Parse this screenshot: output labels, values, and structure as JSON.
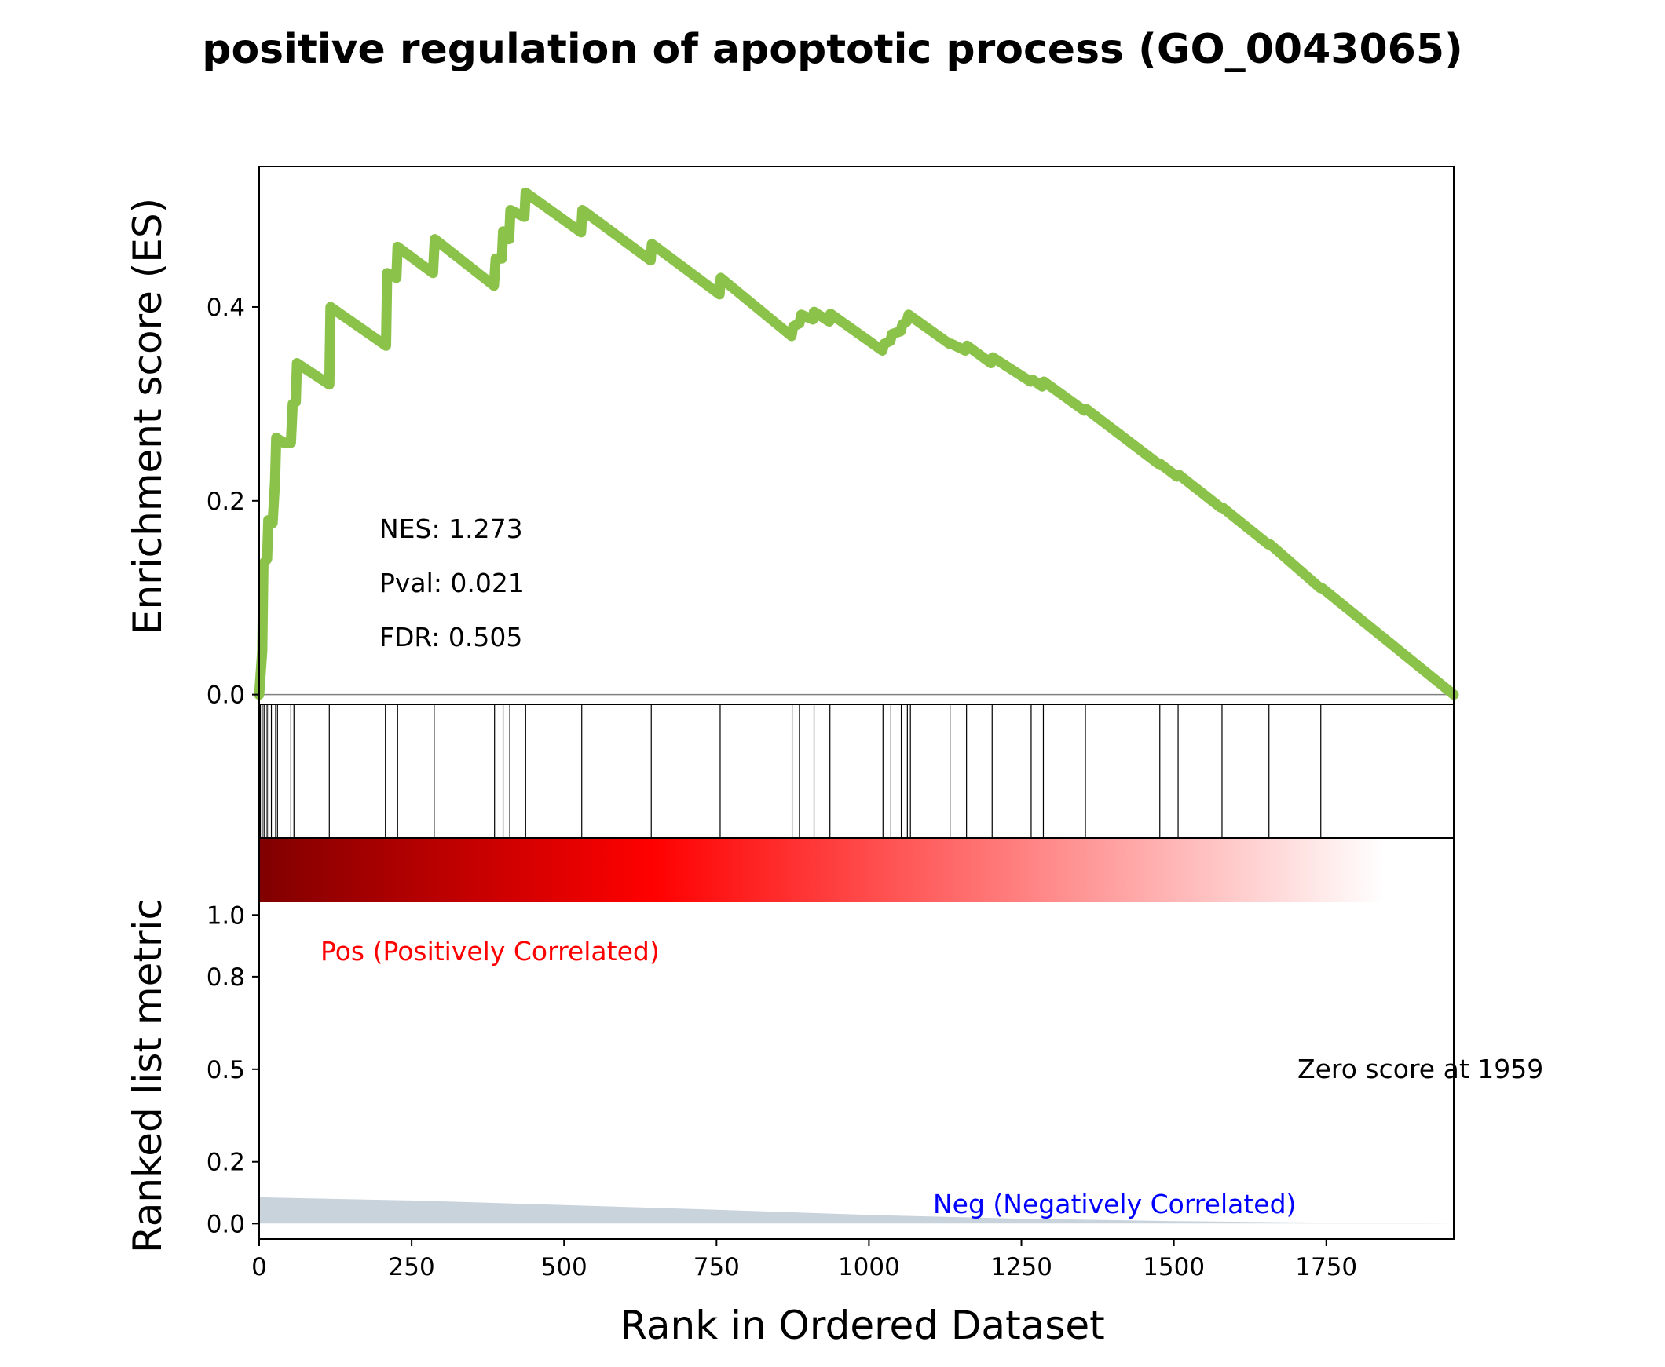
{
  "chart_data": {
    "type": "line",
    "title": "positive regulation of apoptotic process (GO_0043065)",
    "es_panel": {
      "ylabel": "Enrichment score (ES)",
      "ylim": [
        -0.01,
        0.545
      ],
      "yticks": [
        0.0,
        0.2,
        0.4
      ],
      "ytick_labels": [
        "0.0",
        "0.2",
        "0.4"
      ],
      "line_color": "#8bc34a",
      "es_curve": [
        [
          0,
          0.0
        ],
        [
          5,
          0.045
        ],
        [
          7,
          0.135
        ],
        [
          13,
          0.14
        ],
        [
          15,
          0.18
        ],
        [
          22,
          0.177
        ],
        [
          26,
          0.22
        ],
        [
          28,
          0.265
        ],
        [
          40,
          0.26
        ],
        [
          52,
          0.26
        ],
        [
          55,
          0.3
        ],
        [
          60,
          0.302
        ],
        [
          62,
          0.342
        ],
        [
          115,
          0.32
        ],
        [
          117,
          0.4
        ],
        [
          208,
          0.36
        ],
        [
          210,
          0.435
        ],
        [
          225,
          0.43
        ],
        [
          227,
          0.462
        ],
        [
          285,
          0.435
        ],
        [
          288,
          0.47
        ],
        [
          385,
          0.422
        ],
        [
          388,
          0.45
        ],
        [
          398,
          0.45
        ],
        [
          400,
          0.478
        ],
        [
          410,
          0.47
        ],
        [
          412,
          0.5
        ],
        [
          435,
          0.493
        ],
        [
          437,
          0.518
        ],
        [
          528,
          0.477
        ],
        [
          530,
          0.5
        ],
        [
          642,
          0.448
        ],
        [
          644,
          0.465
        ],
        [
          755,
          0.413
        ],
        [
          757,
          0.43
        ],
        [
          873,
          0.37
        ],
        [
          876,
          0.38
        ],
        [
          886,
          0.383
        ],
        [
          889,
          0.392
        ],
        [
          908,
          0.387
        ],
        [
          910,
          0.395
        ],
        [
          935,
          0.385
        ],
        [
          937,
          0.393
        ],
        [
          1022,
          0.355
        ],
        [
          1025,
          0.362
        ],
        [
          1035,
          0.365
        ],
        [
          1038,
          0.372
        ],
        [
          1052,
          0.375
        ],
        [
          1055,
          0.382
        ],
        [
          1062,
          0.385
        ],
        [
          1065,
          0.392
        ],
        [
          1132,
          0.362
        ],
        [
          1135,
          0.362
        ],
        [
          1158,
          0.355
        ],
        [
          1161,
          0.36
        ],
        [
          1200,
          0.342
        ],
        [
          1203,
          0.348
        ],
        [
          1265,
          0.323
        ],
        [
          1268,
          0.325
        ],
        [
          1284,
          0.318
        ],
        [
          1287,
          0.323
        ],
        [
          1353,
          0.293
        ],
        [
          1356,
          0.295
        ],
        [
          1475,
          0.238
        ],
        [
          1478,
          0.238
        ],
        [
          1505,
          0.225
        ],
        [
          1508,
          0.227
        ],
        [
          1577,
          0.193
        ],
        [
          1580,
          0.193
        ],
        [
          1655,
          0.155
        ],
        [
          1658,
          0.155
        ],
        [
          1740,
          0.11
        ],
        [
          1743,
          0.11
        ],
        [
          1959,
          0.0
        ]
      ],
      "annotations": [
        "NES: 1.273",
        "Pval: 0.021",
        "FDR: 0.505"
      ]
    },
    "hits_panel": {
      "hit_ranks": [
        2,
        5,
        8,
        13,
        16,
        20,
        27,
        30,
        52,
        57,
        115,
        207,
        227,
        287,
        386,
        400,
        411,
        437,
        529,
        643,
        756,
        874,
        886,
        910,
        936,
        1023,
        1036,
        1053,
        1063,
        1068,
        1133,
        1160,
        1202,
        1266,
        1286,
        1355,
        1477,
        1507,
        1579,
        1656,
        1741
      ]
    },
    "metric_panel": {
      "ylabel": "Ranked list metric",
      "yticks": [
        0.0,
        0.2,
        0.5,
        0.8,
        1.0
      ],
      "ytick_labels": [
        "0.0",
        "0.2",
        "0.5",
        "0.8",
        "1.0"
      ],
      "ylim": [
        -0.05,
        1.25
      ],
      "fill_color": "#c9d3dc",
      "metric_curve": [
        [
          0,
          0.085
        ],
        [
          250,
          0.075
        ],
        [
          500,
          0.06
        ],
        [
          750,
          0.045
        ],
        [
          1000,
          0.028
        ],
        [
          1250,
          0.016
        ],
        [
          1500,
          0.008
        ],
        [
          1750,
          0.003
        ],
        [
          1959,
          0.0
        ]
      ],
      "pos_label": "Pos (Positively Correlated)",
      "neg_label": "Neg (Negatively Correlated)",
      "zero_label": "Zero score at 1959",
      "pos_color": "#ff0000",
      "neg_color": "#0000ff",
      "gradient_colors": [
        "#800000",
        "#ff0000",
        "#ffffff"
      ],
      "gradient_end": 1845
    },
    "xlabel": "Rank in Ordered Dataset",
    "xlim": [
      0,
      1959
    ],
    "xticks": [
      0,
      250,
      500,
      750,
      1000,
      1250,
      1500,
      1750
    ],
    "xtick_labels": [
      "0",
      "250",
      "500",
      "750",
      "1000",
      "1250",
      "1500",
      "1750"
    ]
  }
}
